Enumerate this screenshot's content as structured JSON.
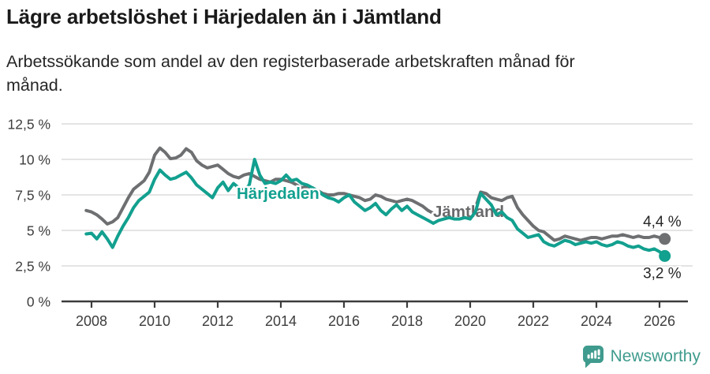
{
  "header": {
    "title": "Lägre arbetslöshet i Härjedalen än i Jämtland",
    "subtitle_line1": "Arbetssökande som andel av den registerbaserade arbetskraften månad för",
    "subtitle_line2": "månad."
  },
  "chart_data": {
    "type": "line",
    "title": "Lägre arbetslöshet i Härjedalen än i Jämtland",
    "subtitle": "Arbetssökande som andel av den registerbaserade arbetskraften månad för månad.",
    "xlabel": "",
    "ylabel": "",
    "grid": true,
    "legend_position": "inline-labels",
    "x_start": 2007.8333,
    "x_step": 0.166667,
    "xlim": [
      2007.83,
      2026.17
    ],
    "ylim": [
      0,
      12.5
    ],
    "y_ticks": [
      {
        "v": 12.5,
        "label": "12,5 %"
      },
      {
        "v": 10,
        "label": "10 %"
      },
      {
        "v": 7.5,
        "label": "7,5 %"
      },
      {
        "v": 5,
        "label": "5 %"
      },
      {
        "v": 2.5,
        "label": "2,5 %"
      },
      {
        "v": 0,
        "label": "0 %"
      }
    ],
    "x_ticks": [
      {
        "v": 2008,
        "label": "2008"
      },
      {
        "v": 2010,
        "label": "2010"
      },
      {
        "v": 2012,
        "label": "2012"
      },
      {
        "v": 2014,
        "label": "2014"
      },
      {
        "v": 2016,
        "label": "2016"
      },
      {
        "v": 2018,
        "label": "2018"
      },
      {
        "v": 2020,
        "label": "2020"
      },
      {
        "v": 2022,
        "label": "2022"
      },
      {
        "v": 2024,
        "label": "2024"
      },
      {
        "v": 2026,
        "label": "2026"
      }
    ],
    "series": [
      {
        "id": "jamtland",
        "name": "Jämtland",
        "color": "#6d6f71",
        "label_color": "#68696b",
        "end_label": "4,4 %",
        "end_label_position": "above",
        "values": [
          6.4,
          6.3,
          6.1,
          5.8,
          5.45,
          5.6,
          5.9,
          6.6,
          7.3,
          7.9,
          8.2,
          8.5,
          9.1,
          10.3,
          10.8,
          10.5,
          10.05,
          10.1,
          10.3,
          10.75,
          10.5,
          9.9,
          9.6,
          9.4,
          9.5,
          9.6,
          9.3,
          9.0,
          8.8,
          8.7,
          8.9,
          9.0,
          8.8,
          8.6,
          8.5,
          8.4,
          8.6,
          8.6,
          8.5,
          8.4,
          8.2,
          8.0,
          8.1,
          8.0,
          7.8,
          7.6,
          7.5,
          7.5,
          7.6,
          7.6,
          7.5,
          7.4,
          7.3,
          7.1,
          7.2,
          7.5,
          7.4,
          7.2,
          7.1,
          7.0,
          7.1,
          7.2,
          7.1,
          6.9,
          6.7,
          6.4,
          6.2,
          6.15,
          6.3,
          6.4,
          6.5,
          6.4,
          6.4,
          6.3,
          6.6,
          7.7,
          7.6,
          7.3,
          7.2,
          7.1,
          7.3,
          7.4,
          6.6,
          6.1,
          5.7,
          5.3,
          5.0,
          4.9,
          4.6,
          4.3,
          4.4,
          4.6,
          4.5,
          4.4,
          4.3,
          4.4,
          4.5,
          4.5,
          4.4,
          4.5,
          4.6,
          4.6,
          4.7,
          4.6,
          4.5,
          4.6,
          4.5,
          4.5,
          4.6,
          4.5,
          4.4
        ]
      },
      {
        "id": "harjedalen",
        "name": "Härjedalen",
        "color": "#12a08f",
        "label_color": "#12a08f",
        "end_label": "3,2 %",
        "end_label_position": "below",
        "values": [
          4.75,
          4.8,
          4.4,
          4.9,
          4.4,
          3.8,
          4.6,
          5.3,
          5.9,
          6.6,
          7.1,
          7.4,
          7.7,
          8.6,
          9.25,
          8.9,
          8.6,
          8.7,
          8.9,
          9.1,
          8.7,
          8.2,
          7.9,
          7.6,
          7.3,
          8.0,
          8.4,
          7.8,
          8.3,
          8.0,
          7.8,
          8.2,
          10.0,
          8.9,
          8.3,
          8.4,
          8.3,
          8.5,
          8.9,
          8.5,
          8.6,
          8.3,
          8.2,
          8.0,
          7.8,
          7.5,
          7.3,
          7.2,
          7.0,
          7.3,
          7.5,
          7.0,
          6.7,
          6.4,
          6.6,
          6.9,
          6.4,
          6.1,
          6.5,
          6.8,
          6.4,
          6.7,
          6.3,
          6.1,
          5.9,
          5.7,
          5.5,
          5.7,
          5.8,
          5.9,
          5.8,
          5.8,
          5.9,
          5.8,
          6.3,
          7.6,
          7.2,
          6.8,
          6.1,
          6.3,
          5.9,
          5.7,
          5.1,
          4.8,
          4.5,
          4.6,
          4.7,
          4.2,
          4.0,
          3.9,
          4.1,
          4.3,
          4.2,
          4.0,
          4.1,
          4.2,
          4.1,
          4.2,
          4.0,
          3.9,
          4.0,
          4.2,
          4.1,
          3.9,
          3.8,
          3.9,
          3.7,
          3.6,
          3.7,
          3.5,
          3.2
        ]
      }
    ]
  },
  "footer": {
    "brand": "Newsworthy",
    "brand_icon": "bar-chart-speech-bubble-icon"
  },
  "colors": {
    "accent_teal": "#12a08f",
    "series_gray": "#6d6f71",
    "brand_teal": "#3f9b8d",
    "grid": "#dcdcdc",
    "axis": "#3c3c3c",
    "text_dark": "#1a1a1a"
  }
}
